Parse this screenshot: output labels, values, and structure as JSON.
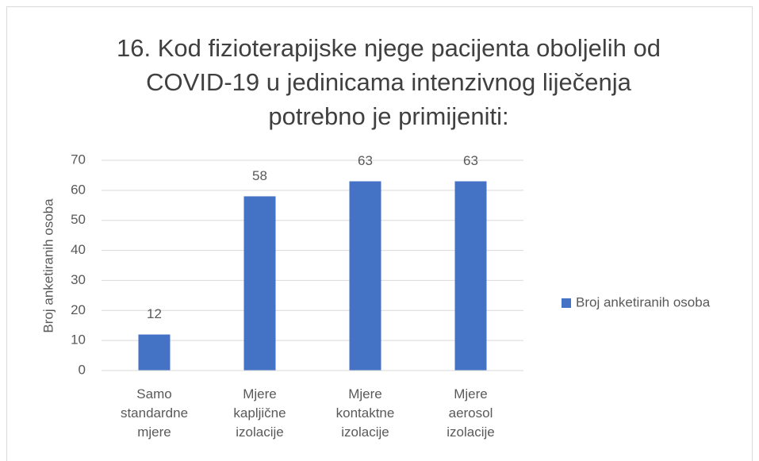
{
  "chart_data": {
    "type": "bar",
    "title": "16. Kod fizioterapijske njege pacijenta oboljelih od COVID-19 u jedinicama intenzivnog liječenja potrebno je primijeniti:",
    "y_label": "Broj anketiranih osoba",
    "categories": [
      "Samo standardne mjere",
      "Mjere kapljične izolacije",
      "Mjere kontaktne izolacije",
      "Mjere aerosol izolacije"
    ],
    "series": [
      {
        "name": "Broj anketiranih osoba",
        "color": "#4472c4",
        "values": [
          12,
          58,
          63,
          63
        ]
      }
    ],
    "ylim": [
      0,
      70
    ],
    "yticks": [
      0,
      10,
      20,
      30,
      40,
      50,
      60,
      70
    ],
    "grid": true,
    "legend": "right"
  }
}
